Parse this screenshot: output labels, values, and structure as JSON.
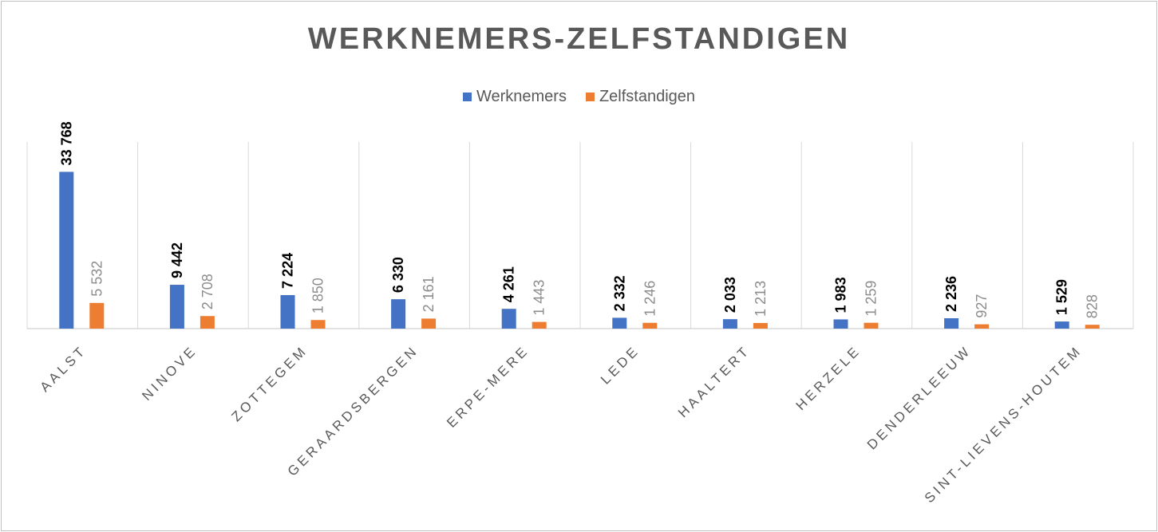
{
  "colors": {
    "werknemers": "#4472c4",
    "zelfstandigen": "#ed7d31"
  },
  "chart_data": {
    "type": "bar",
    "title": "WERKNEMERS-ZELFSTANDIGEN",
    "categories": [
      "AALST",
      "NINOVE",
      "ZOTTEGEM",
      "GERAARDSBERGEN",
      "ERPE-MERE",
      "LEDE",
      "HAALTERT",
      "HERZELE",
      "DENDERLEEUW",
      "SINT-LIEVENS-HOUTEM"
    ],
    "series": [
      {
        "name": "Werknemers",
        "values": [
          33768,
          9442,
          7224,
          6330,
          4261,
          2332,
          2033,
          1983,
          2236,
          1529
        ],
        "labels": [
          "33 768",
          "9 442",
          "7 224",
          "6 330",
          "4 261",
          "2 332",
          "2 033",
          "1 983",
          "2 236",
          "1 529"
        ]
      },
      {
        "name": "Zelfstandigen",
        "values": [
          5532,
          2708,
          1850,
          2161,
          1443,
          1246,
          1213,
          1259,
          927,
          828
        ],
        "labels": [
          "5 532",
          "2 708",
          "1 850",
          "2 161",
          "1 443",
          "1 246",
          "1 213",
          "1 259",
          "927",
          "828"
        ]
      }
    ],
    "xlabel": "",
    "ylabel": "",
    "ylim": [
      0,
      40000
    ],
    "grid": "vertical",
    "legend": "top-center"
  }
}
